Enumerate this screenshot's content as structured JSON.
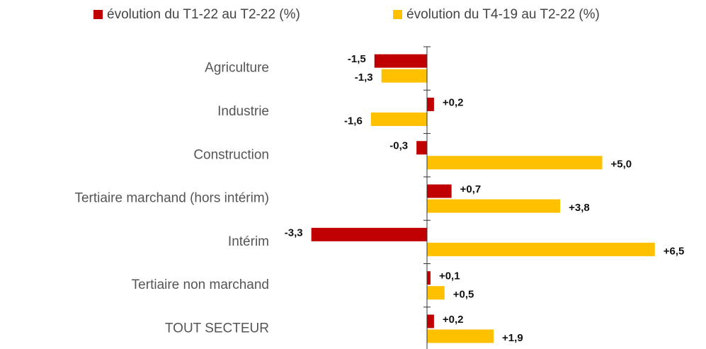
{
  "chart_data": {
    "type": "bar",
    "orientation": "horizontal",
    "categories": [
      "Agriculture",
      "Industrie",
      "Construction",
      "Tertiaire marchand (hors intérim)",
      "Intérim",
      "Tertiaire non marchand",
      "TOUT SECTEUR"
    ],
    "series": [
      {
        "name": "évolution du T1-22 au T2-22 (%)",
        "color": "#c00000",
        "values": [
          -1.5,
          0.2,
          -0.3,
          0.7,
          -3.3,
          0.1,
          0.2
        ],
        "value_labels": [
          "-1,5",
          "+0,2",
          "-0,3",
          "+0,7",
          "-3,3",
          "+0,1",
          "+0,2"
        ]
      },
      {
        "name": "évolution du T4-19 au T2-22 (%)",
        "color": "#ffc000",
        "values": [
          -1.3,
          -1.6,
          5.0,
          3.8,
          6.5,
          0.5,
          1.9
        ],
        "value_labels": [
          "-1,3",
          "-1,6",
          "+5,0",
          "+3,8",
          "+6,5",
          "+0,5",
          "+1,9"
        ]
      }
    ],
    "legend": "top"
  }
}
